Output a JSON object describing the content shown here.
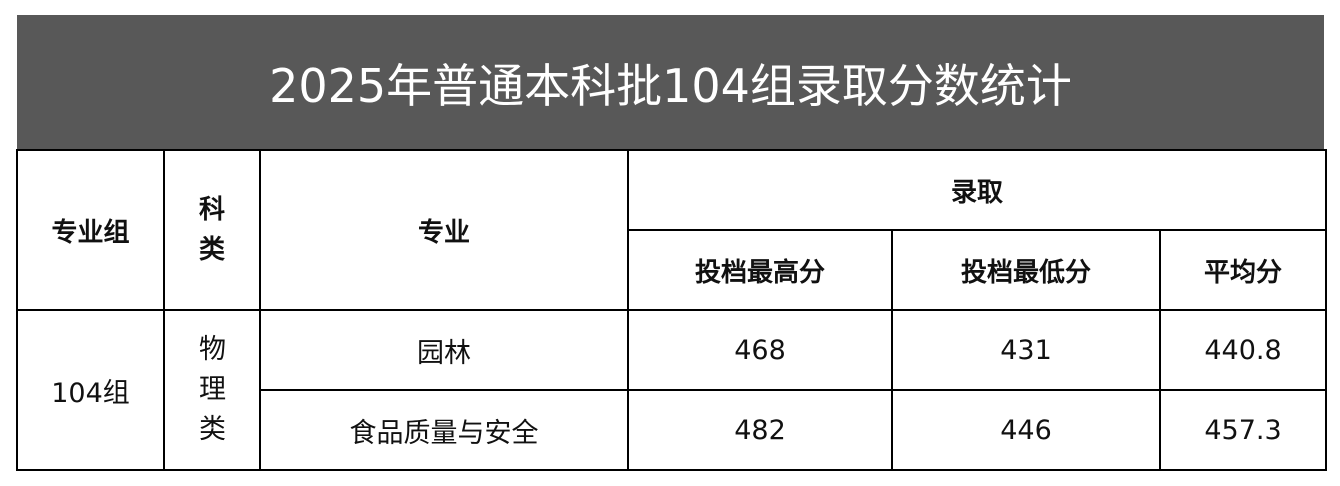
{
  "title": "2025年普通本科批104组录取分数统计",
  "headers": {
    "group": "专业组",
    "category": "科类",
    "major": "专业",
    "admission": "录取",
    "max": "投档最高分",
    "min": "投档最低分",
    "avg": "平均分"
  },
  "group": "104组",
  "category": "物理类",
  "rows": [
    {
      "major": "园林",
      "max": "468",
      "min": "431",
      "avg": "440.8"
    },
    {
      "major": "食品质量与安全",
      "max": "482",
      "min": "446",
      "avg": "457.3"
    }
  ]
}
